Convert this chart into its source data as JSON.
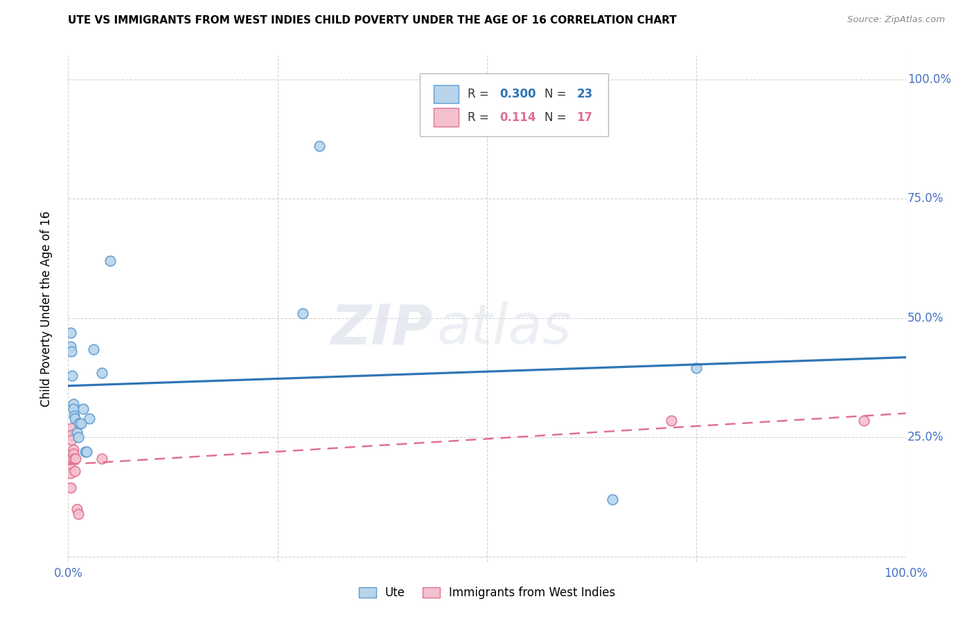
{
  "title": "UTE VS IMMIGRANTS FROM WEST INDIES CHILD POVERTY UNDER THE AGE OF 16 CORRELATION CHART",
  "source": "Source: ZipAtlas.com",
  "ylabel": "Child Poverty Under the Age of 16",
  "xlim": [
    0.0,
    1.0
  ],
  "ylim": [
    -0.01,
    1.05
  ],
  "xticks": [
    0.0,
    0.25,
    0.5,
    0.75,
    1.0
  ],
  "yticks": [
    0.0,
    0.25,
    0.5,
    0.75,
    1.0
  ],
  "xtick_labels": [
    "0.0%",
    "",
    "",
    "",
    "100.0%"
  ],
  "ytick_labels_right": [
    "100.0%",
    "75.0%",
    "50.0%",
    "25.0%",
    ""
  ],
  "watermark_line1": "ZIP",
  "watermark_line2": "atlas",
  "ute_color": "#b8d4ea",
  "ute_edge_color": "#5b9bd5",
  "wi_color": "#f5c0ce",
  "wi_edge_color": "#e07090",
  "ute_line_color": "#2e75b6",
  "wi_line_color": "#e07090",
  "ute_R": "0.300",
  "ute_N": "23",
  "wi_R": "0.114",
  "wi_N": "17",
  "ute_x": [
    0.003,
    0.003,
    0.004,
    0.005,
    0.006,
    0.006,
    0.007,
    0.008,
    0.01,
    0.012,
    0.013,
    0.015,
    0.018,
    0.02,
    0.022,
    0.025,
    0.03,
    0.04,
    0.05,
    0.28,
    0.3,
    0.65,
    0.75
  ],
  "ute_y": [
    0.47,
    0.44,
    0.43,
    0.38,
    0.32,
    0.31,
    0.295,
    0.29,
    0.26,
    0.25,
    0.28,
    0.28,
    0.31,
    0.22,
    0.22,
    0.29,
    0.435,
    0.385,
    0.62,
    0.51,
    0.86,
    0.12,
    0.395
  ],
  "wi_x": [
    0.002,
    0.003,
    0.003,
    0.004,
    0.004,
    0.004,
    0.005,
    0.006,
    0.006,
    0.007,
    0.008,
    0.009,
    0.01,
    0.012,
    0.04,
    0.72,
    0.95
  ],
  "wi_y": [
    0.19,
    0.175,
    0.145,
    0.27,
    0.255,
    0.245,
    0.205,
    0.225,
    0.215,
    0.205,
    0.18,
    0.205,
    0.1,
    0.09,
    0.205,
    0.285,
    0.285
  ],
  "background_color": "#ffffff",
  "grid_color": "#cccccc",
  "marker_size": 110,
  "figsize": [
    14.06,
    8.92
  ],
  "dpi": 100
}
